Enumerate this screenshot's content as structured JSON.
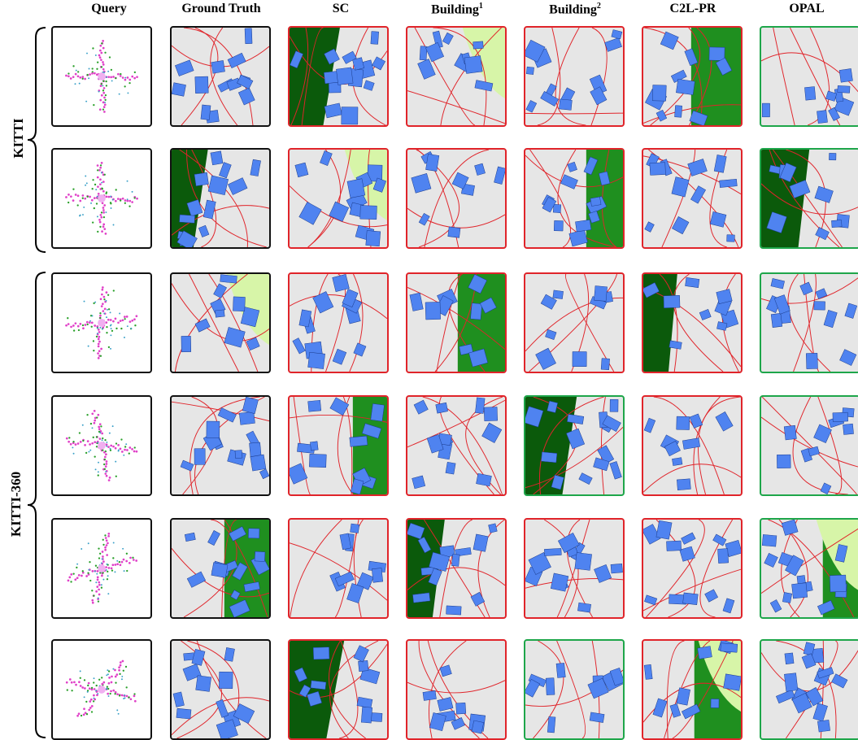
{
  "columns": [
    {
      "label": "Query"
    },
    {
      "label": "Ground Truth"
    },
    {
      "label": "SC"
    },
    {
      "label": "Building",
      "sup": "1"
    },
    {
      "label": "Building",
      "sup": "2"
    },
    {
      "label": "C2L-PR"
    },
    {
      "label": "OPAL"
    }
  ],
  "groups": [
    {
      "label": "KITTI"
    },
    {
      "label": "KITTI-360"
    }
  ],
  "colors": {
    "building": "#4f83f0",
    "road": "#e0242a",
    "correct": "#1ea64a",
    "wrong": "#e0242a",
    "reference": "#111111",
    "grass": "#d7f5a8",
    "forest": "#1f8f1f",
    "dark_forest": "#0b5a0b",
    "ground": "#e6e6e6",
    "parking": "#fde0a0"
  },
  "rows": [
    {
      "group": 0,
      "tiles": [
        "query",
        "black",
        "red",
        "red",
        "red",
        "red",
        "green"
      ]
    },
    {
      "group": 0,
      "tiles": [
        "query",
        "black",
        "red",
        "red",
        "red",
        "red",
        "green"
      ]
    },
    {
      "group": 1,
      "tiles": [
        "query",
        "black",
        "red",
        "red",
        "red",
        "red",
        "green"
      ]
    },
    {
      "group": 1,
      "tiles": [
        "query",
        "black",
        "red",
        "red",
        "green",
        "red",
        "green"
      ]
    },
    {
      "group": 1,
      "tiles": [
        "query",
        "black",
        "red",
        "red",
        "red",
        "red",
        "green"
      ]
    },
    {
      "group": 1,
      "tiles": [
        "query",
        "black",
        "red",
        "red",
        "green",
        "red",
        "green"
      ]
    }
  ]
}
